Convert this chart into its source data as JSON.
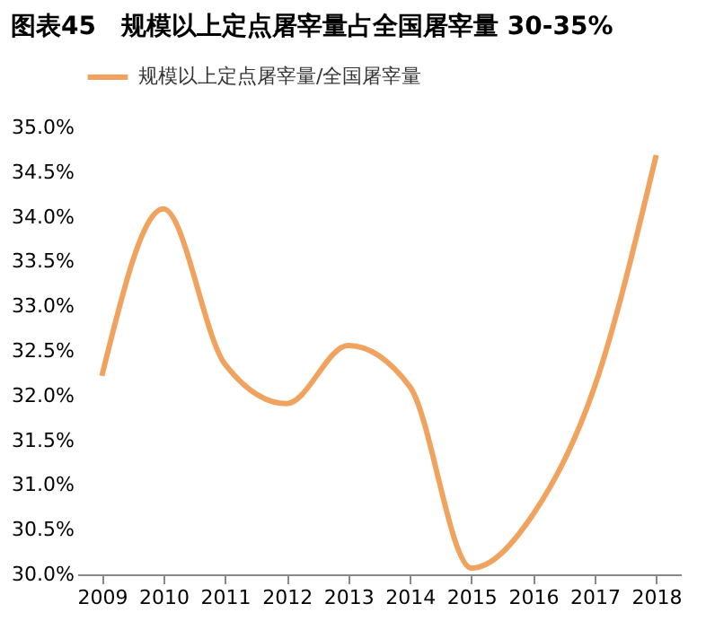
{
  "chart_data": {
    "type": "line",
    "title": "图表45　规模以上定点屠宰量占全国屠宰量 30-35%",
    "categories": [
      "2009",
      "2010",
      "2011",
      "2012",
      "2013",
      "2014",
      "2015",
      "2016",
      "2017",
      "2018"
    ],
    "series": [
      {
        "name": "规模以上定点屠宰量/全国屠宰量",
        "color": "#f0a35e",
        "values": [
          32.22,
          34.09,
          32.35,
          31.91,
          32.56,
          32.1,
          30.07,
          30.67,
          32.1,
          34.69
        ]
      }
    ],
    "ylim": [
      30,
      35
    ],
    "yticks": [
      {
        "value": 30,
        "label": "30.0%"
      },
      {
        "value": 30.5,
        "label": "30.5%"
      },
      {
        "value": 31,
        "label": "31.0%"
      },
      {
        "value": 31.5,
        "label": "31.5%"
      },
      {
        "value": 32,
        "label": "32.0%"
      },
      {
        "value": 32.5,
        "label": "32.5%"
      },
      {
        "value": 33,
        "label": "33.0%"
      },
      {
        "value": 33.5,
        "label": "33.5%"
      },
      {
        "value": 34,
        "label": "34.0%"
      },
      {
        "value": 34.5,
        "label": "34.5%"
      },
      {
        "value": 35,
        "label": "35.0%"
      }
    ],
    "grid": false,
    "legend": "top",
    "marker": "none",
    "line_style": "solid"
  }
}
